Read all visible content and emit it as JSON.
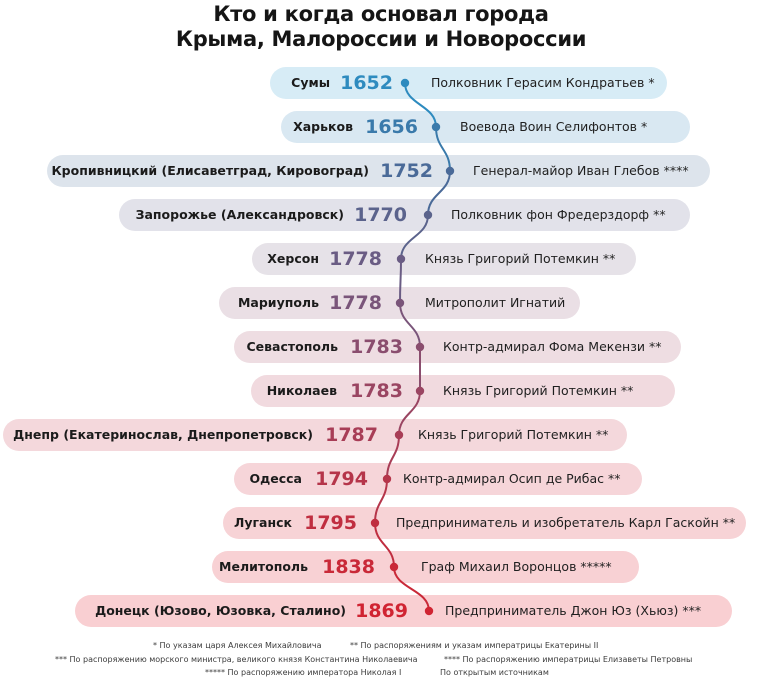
{
  "title": {
    "line1": "Кто и когда основал города",
    "line2": "Крыма, Малороссии и Новороссии"
  },
  "rows": [
    {
      "city": "Сумы",
      "year": "1652",
      "founder": "Полковник Герасим Кондратьев *",
      "year_color": "#2e8bbf",
      "bg": "#d7ecf6"
    },
    {
      "city": "Харьков",
      "year": "1656",
      "founder": "Воевода Воин Селифонтов *",
      "year_color": "#3a7aab",
      "bg": "#d9e8f2"
    },
    {
      "city": "Кропивницкий (Елисаветград, Кировоград)",
      "year": "1752",
      "founder": "Генерал-майор Иван Глебов ****",
      "year_color": "#4a6a98",
      "bg": "#dde4ec"
    },
    {
      "city": "Запорожье (Александровск)",
      "year": "1770",
      "founder": "Полковник фон Фредерздорф **",
      "year_color": "#5b638c",
      "bg": "#e2e2ea"
    },
    {
      "city": "Херсон",
      "year": "1778",
      "founder": "Князь Григорий Потемкин **",
      "year_color": "#6a5c84",
      "bg": "#e6e2e8"
    },
    {
      "city": "Мариуполь",
      "year": "1778",
      "founder": "Митрополит Игнатий",
      "year_color": "#7a557a",
      "bg": "#eadfe5"
    },
    {
      "city": "Севастополь",
      "year": "1783",
      "founder": "Контр-адмирал Фома Мекензи **",
      "year_color": "#8a4d6e",
      "bg": "#eeddE2"
    },
    {
      "city": "Николаев",
      "year": "1783",
      "founder": "Князь Григорий Потемкин **",
      "year_color": "#9a4562",
      "bg": "#f1dadf"
    },
    {
      "city": "Днепр (Екатеринослав, Днепропетровск)",
      "year": "1787",
      "founder": "Князь Григорий Потемкин **",
      "year_color": "#a83d56",
      "bg": "#f4d8dc"
    },
    {
      "city": "Одесса",
      "year": "1794",
      "founder": "Контр-адмирал Осип де Рибас **",
      "year_color": "#b5354a",
      "bg": "#f6d5d9"
    },
    {
      "city": "Луганск",
      "year": "1795",
      "founder": "Предприниматель и изобретатель Карл Гаскойн **",
      "year_color": "#c02e40",
      "bg": "#f7d3d6"
    },
    {
      "city": "Мелитополь",
      "year": "1838",
      "founder": "Граф Михаил Воронцов *****",
      "year_color": "#c92938",
      "bg": "#f8d1d4"
    },
    {
      "city": "Донецк (Юзово, Юзовка, Сталино)",
      "year": "1869",
      "founder": "Предприниматель Джон Юз (Хьюз) ***",
      "year_color": "#d02432",
      "bg": "#f9cfd2"
    }
  ],
  "footnotes": {
    "n1": "* По указам царя Алексея Михайловича",
    "n2": "** По распоряжениям и указам императрицы Екатерины II",
    "n3": "*** По распоряжению морского министра, великого князя Константина Николаевича",
    "n4": "**** По распоряжению императрицы Елизаветы Петровны",
    "n5": "***** По распоряжению императора Николая I",
    "n6": "По открытым источникам"
  }
}
